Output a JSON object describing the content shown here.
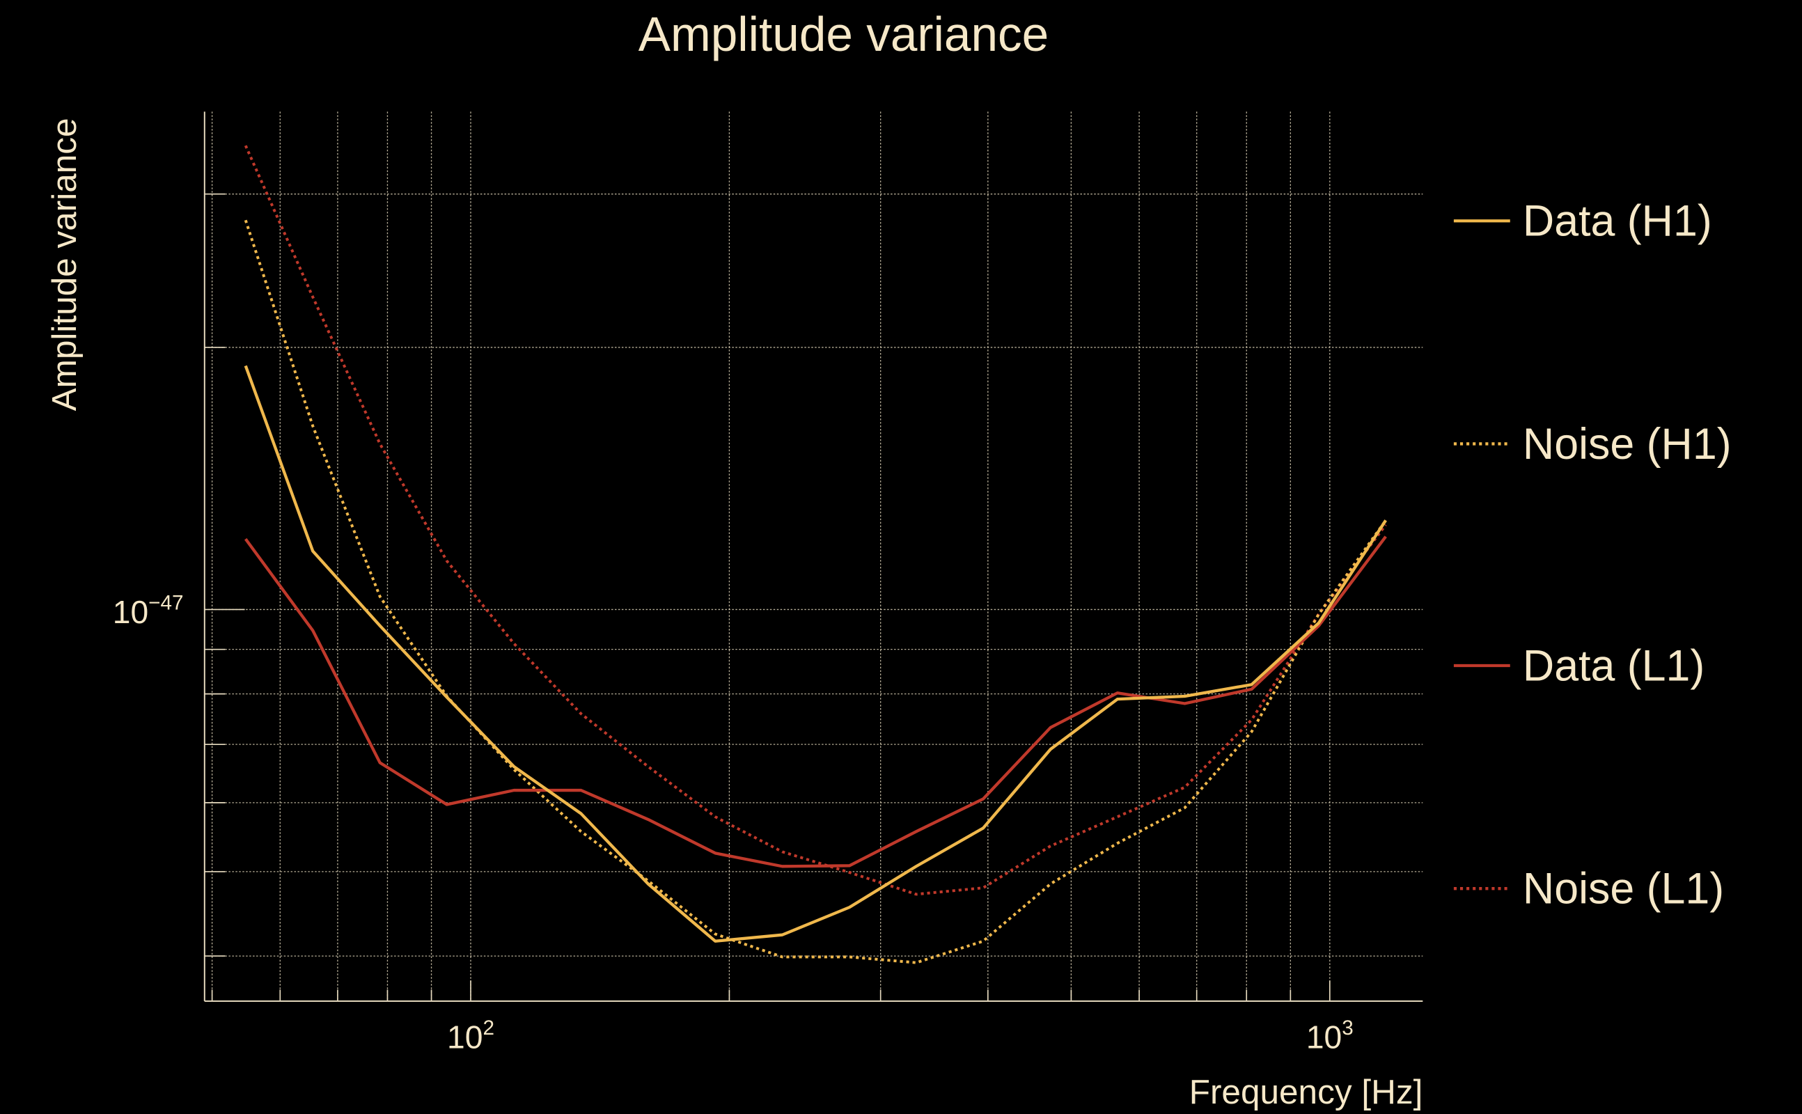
{
  "chart_data": {
    "type": "line",
    "title": "Amplitude variance",
    "xlabel": "Frequency [Hz]",
    "ylabel": "Amplitude variance",
    "xscale": "log",
    "yscale": "log",
    "xlim": [
      49,
      1283
    ],
    "ylim": [
      3.55e-48,
      3.73e-47
    ],
    "grid": true,
    "legend_position": "right-outside",
    "x_tick_labels": [
      {
        "base": "10",
        "exp": "2",
        "value": 100
      },
      {
        "base": "10",
        "exp": "3",
        "value": 1000
      }
    ],
    "y_tick_labels": [
      {
        "base": "10",
        "exp": "−47",
        "value": 1e-47
      }
    ],
    "x": [
      54.7,
      65.5,
      78.4,
      93.8,
      112.3,
      134.4,
      160.9,
      192.6,
      230.5,
      276,
      330,
      395,
      473,
      566,
      678,
      811,
      971,
      1162
    ],
    "series": [
      {
        "name": "Data (H1)",
        "color": "#f0b84c",
        "style": "solid",
        "values": [
          1.905e-47,
          1.167e-47,
          9.58e-48,
          7.93e-48,
          6.6e-48,
          5.83e-48,
          4.84e-48,
          4.16e-48,
          4.23e-48,
          4.55e-48,
          5.07e-48,
          5.61e-48,
          6.91e-48,
          7.89e-48,
          7.95e-48,
          8.2e-48,
          9.65e-48,
          1.266e-47
        ]
      },
      {
        "name": "Noise (H1)",
        "color": "#f0b84c",
        "style": "dotted",
        "values": [
          2.8e-47,
          1.624e-47,
          1.035e-47,
          7.95e-48,
          6.55e-48,
          5.56e-48,
          4.88e-48,
          4.24e-48,
          3.99e-48,
          3.99e-48,
          3.93e-48,
          4.16e-48,
          4.84e-48,
          5.39e-48,
          5.92e-48,
          7.24e-48,
          9.88e-48,
          1.266e-47
        ]
      },
      {
        "name": "Data (L1)",
        "color": "#c0392b",
        "style": "solid",
        "values": [
          1.205e-47,
          9.46e-48,
          6.67e-48,
          5.97e-48,
          6.2e-48,
          6.2e-48,
          5.74e-48,
          5.25e-48,
          5.07e-48,
          5.08e-48,
          5.56e-48,
          6.06e-48,
          7.32e-48,
          8.02e-48,
          7.8e-48,
          8.1e-48,
          9.58e-48,
          1.213e-47
        ]
      },
      {
        "name": "Noise (L1)",
        "color": "#c0392b",
        "style": "dotted",
        "values": [
          3.41e-47,
          2.285e-47,
          1.55e-47,
          1.137e-47,
          9.14e-48,
          7.59e-48,
          6.6e-48,
          5.78e-48,
          5.27e-48,
          4.99e-48,
          4.71e-48,
          4.79e-48,
          5.35e-48,
          5.78e-48,
          6.25e-48,
          7.47e-48,
          9.88e-48,
          1.251e-47
        ]
      }
    ]
  }
}
